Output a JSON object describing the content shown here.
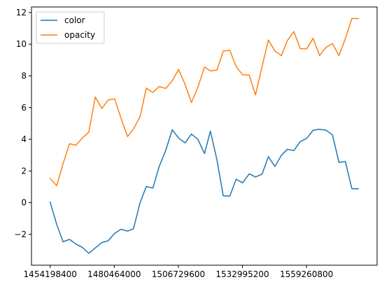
{
  "chart_data": {
    "type": "line",
    "title": "",
    "xlabel": "",
    "ylabel": "",
    "x": [
      1454198400,
      1456876800,
      1459468800,
      1462147200,
      1464739200,
      1467417600,
      1470009600,
      1472688000,
      1475366400,
      1477958400,
      1480636800,
      1483228800,
      1485907200,
      1488326400,
      1491004800,
      1493596800,
      1496275200,
      1498867200,
      1501545600,
      1504224000,
      1506816000,
      1509494400,
      1512086400,
      1514764800,
      1517443200,
      1519862400,
      1522540800,
      1525132800,
      1527811200,
      1530403200,
      1533081600,
      1535760000,
      1538352000,
      1541030400,
      1543622400,
      1546300800,
      1548979200,
      1551398400,
      1554076800,
      1556668800,
      1559347200,
      1561939200,
      1564617600,
      1567296000,
      1569888000,
      1572566400,
      1575158400,
      1577836800,
      1580515200
    ],
    "series": [
      {
        "name": "color",
        "color": "#1f77b4",
        "values": [
          0.03,
          -1.38,
          -2.47,
          -2.32,
          -2.61,
          -2.83,
          -3.2,
          -2.86,
          -2.52,
          -2.41,
          -1.94,
          -1.68,
          -1.8,
          -1.65,
          -0.02,
          1.02,
          0.92,
          2.28,
          3.3,
          4.6,
          4.08,
          3.77,
          4.33,
          3.99,
          3.1,
          4.52,
          2.7,
          0.43,
          0.41,
          1.48,
          1.25,
          1.82,
          1.62,
          1.8,
          2.9,
          2.28,
          3.0,
          3.37,
          3.29,
          3.85,
          4.06,
          4.57,
          4.63,
          4.57,
          4.28,
          2.54,
          2.6,
          0.88,
          0.88
        ]
      },
      {
        "name": "opacity",
        "color": "#ff7f0e",
        "values": [
          1.52,
          1.07,
          2.45,
          3.72,
          3.62,
          4.09,
          4.45,
          6.67,
          5.94,
          6.48,
          6.55,
          5.32,
          4.17,
          4.65,
          5.42,
          7.23,
          6.95,
          7.33,
          7.21,
          7.7,
          8.41,
          7.46,
          6.32,
          7.3,
          8.56,
          8.32,
          8.36,
          9.57,
          9.61,
          8.6,
          8.07,
          8.05,
          6.8,
          8.6,
          10.27,
          9.57,
          9.28,
          10.23,
          10.8,
          9.72,
          9.71,
          10.37,
          9.29,
          9.81,
          10.04,
          9.28,
          10.35,
          11.62,
          11.62
        ]
      }
    ],
    "xlim": [
      1446534960,
      1588179600
    ],
    "ylim": [
      -3.95,
      12.35
    ],
    "xticks": [
      1454198400,
      1480464000,
      1506729600,
      1532995200,
      1559260800
    ],
    "xtick_labels": [
      "1454198400",
      "1480464000",
      "1506729600",
      "1532995200",
      "1559260800"
    ],
    "yticks": [
      -2,
      0,
      2,
      4,
      6,
      8,
      10,
      12
    ],
    "ytick_labels": [
      "−2",
      "0",
      "2",
      "4",
      "6",
      "8",
      "10",
      "12"
    ],
    "legend": {
      "position": "upper-left",
      "entries": [
        "color",
        "opacity"
      ]
    },
    "grid": false
  }
}
